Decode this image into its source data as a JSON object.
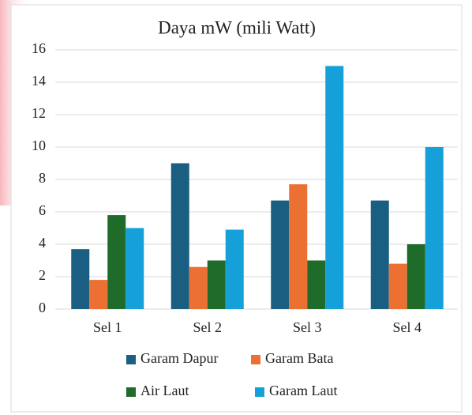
{
  "chart_data": {
    "type": "bar",
    "title": "Daya mW (mili Watt)",
    "categories": [
      "Sel 1",
      "Sel 2",
      "Sel 3",
      "Sel 4"
    ],
    "series": [
      {
        "name": "Garam Dapur",
        "color": "#1a5f82",
        "values": [
          3.7,
          9.0,
          6.7,
          6.7
        ]
      },
      {
        "name": "Garam Bata",
        "color": "#ed7033",
        "values": [
          1.8,
          2.6,
          7.7,
          2.8
        ]
      },
      {
        "name": "Air Laut",
        "color": "#1f6b2a",
        "values": [
          5.8,
          3.0,
          3.0,
          4.0
        ]
      },
      {
        "name": "Garam Laut",
        "color": "#15a0d9",
        "values": [
          5.0,
          4.9,
          15.0,
          10.0
        ]
      }
    ],
    "ylim": [
      0,
      16
    ],
    "yticks": [
      0,
      2,
      4,
      6,
      8,
      10,
      12,
      14,
      16
    ],
    "grid": true,
    "legend": "bottom"
  }
}
